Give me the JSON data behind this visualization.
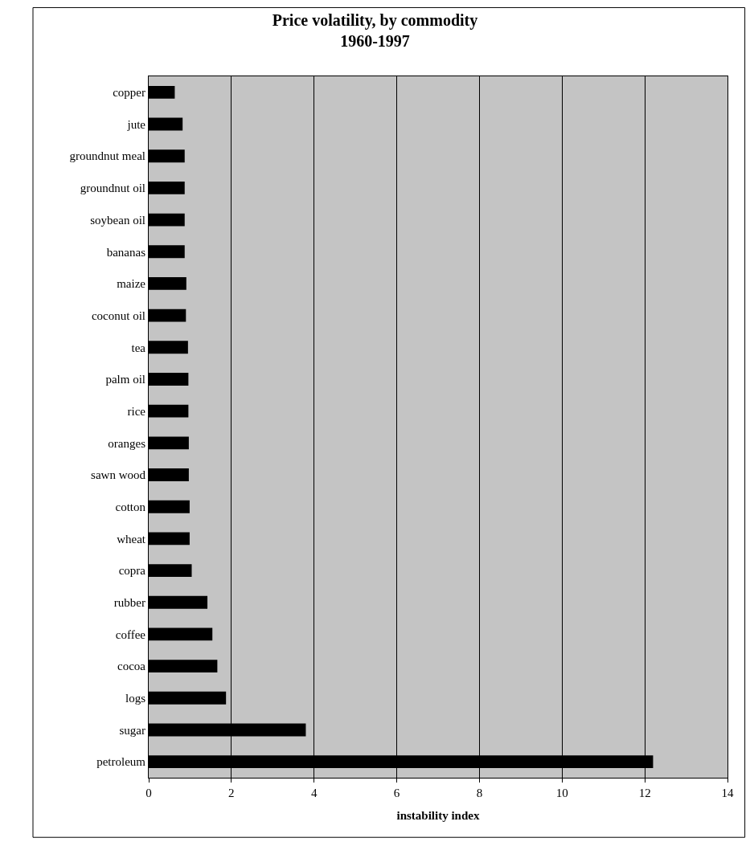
{
  "chart_data": {
    "type": "bar",
    "orientation": "horizontal",
    "title": "Price volatility, by commodity\n1960-1997",
    "xlabel": "instability index",
    "categories": [
      "copper",
      "jute",
      "groundnut meal",
      "groundnut oil",
      "soybean oil",
      "bananas",
      "maize",
      "coconut oil",
      "tea",
      "palm oil",
      "rice",
      "oranges",
      "sawn wood",
      "cotton",
      "wheat",
      "copra",
      "rubber",
      "coffee",
      "cocoa",
      "logs",
      "sugar",
      "petroleum"
    ],
    "values": [
      0.63,
      0.82,
      0.87,
      0.87,
      0.87,
      0.87,
      0.91,
      0.9,
      0.95,
      0.96,
      0.96,
      0.97,
      0.97,
      0.99,
      0.99,
      1.04,
      1.42,
      1.54,
      1.66,
      1.87,
      3.8,
      12.2
    ],
    "color": "#000000",
    "xlim": [
      0,
      14
    ],
    "xticks": [
      0,
      2,
      4,
      6,
      8,
      10,
      12,
      14
    ],
    "grid": "x",
    "legend": false
  }
}
